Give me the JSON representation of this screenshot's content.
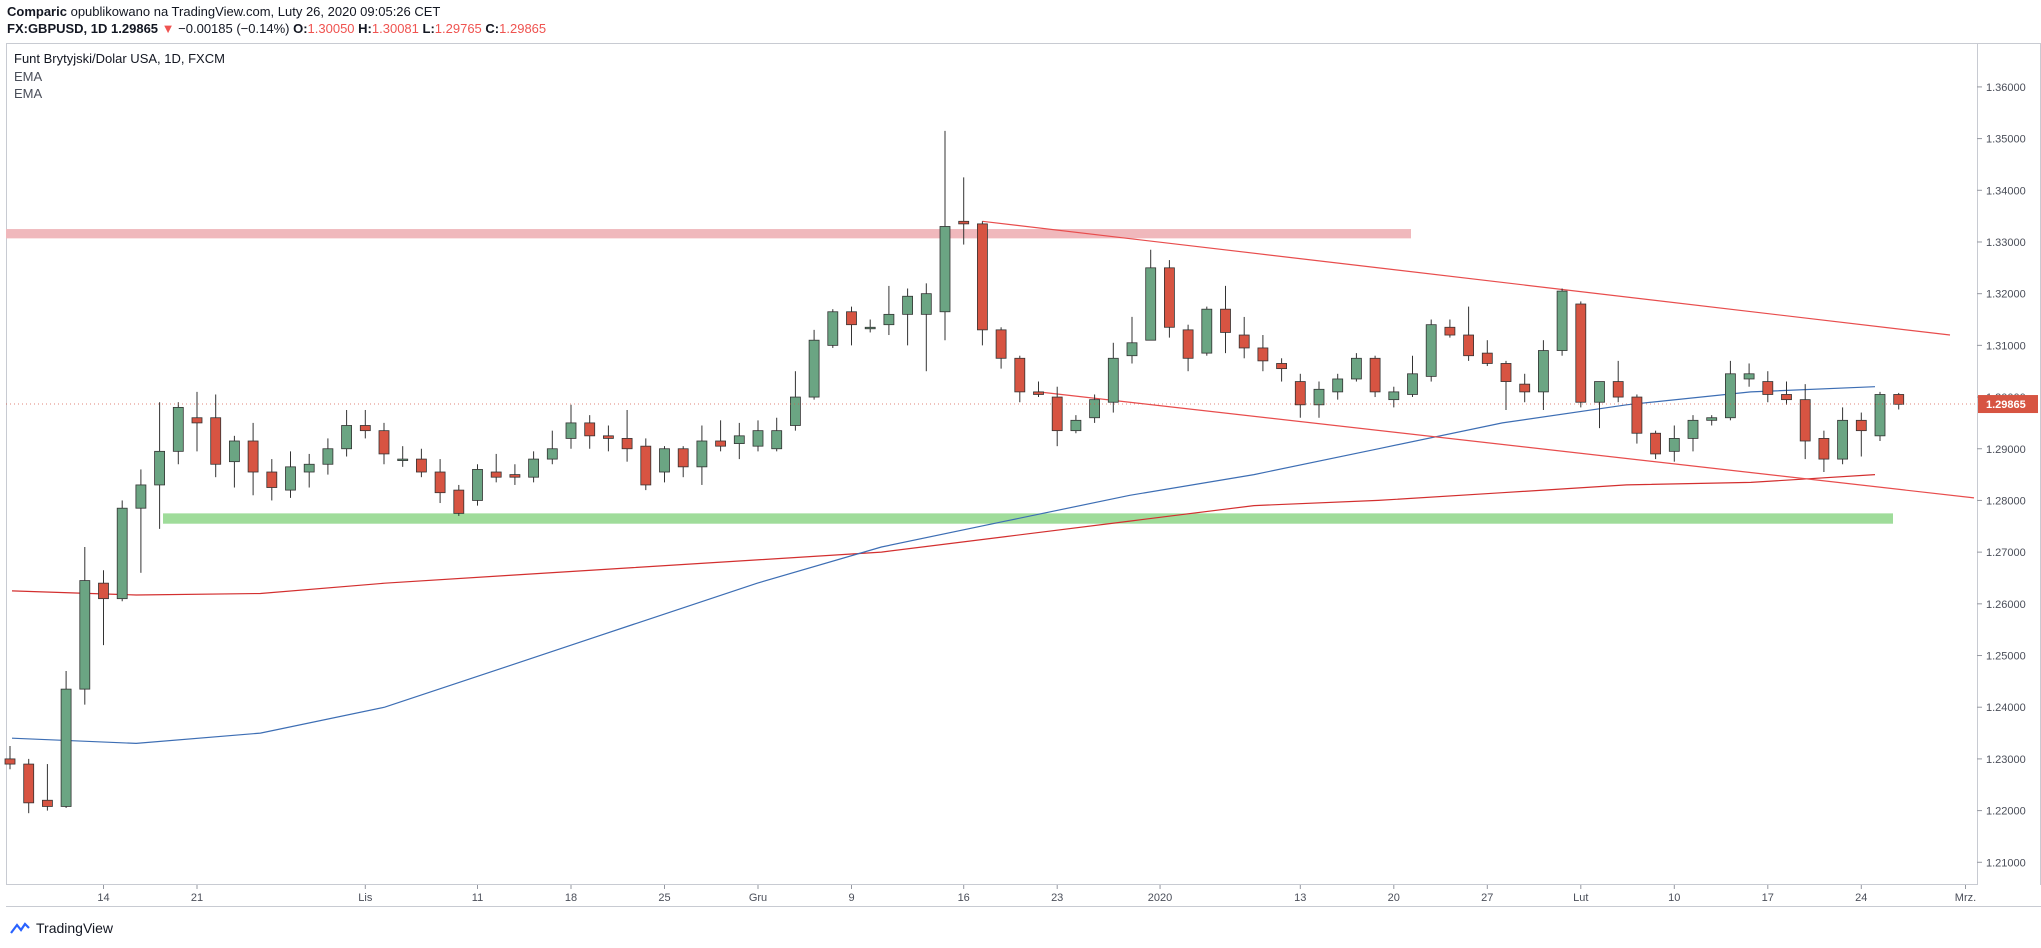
{
  "header": {
    "author": "Comparic",
    "published_text": "opublikowano na TradingView.com, Luty 26, 2020 09:05:26 CET",
    "symbol": "FX:GBPUSD, 1D",
    "last": "1.29865",
    "change_arrow": "▼",
    "change": "−0.00185 (−0.14%)",
    "o_label": "O:",
    "o_value": "1.30050",
    "h_label": "H:",
    "h_value": "1.30081",
    "l_label": "L:",
    "l_value": "1.29765",
    "c_label": "C:",
    "c_value": "1.29865"
  },
  "legend": {
    "title": "Funt Brytyjski/Dolar USA, 1D, FXCM",
    "ind1": "EMA",
    "ind2": "EMA"
  },
  "footer": {
    "brand": "TradingView"
  },
  "colors": {
    "up": "#6ba583",
    "down": "#d75442",
    "ema_fast": "#3d6eb4",
    "ema_slow": "#d32f2f",
    "channel": "#e84d4d",
    "resistance_zone": "#f0b8bc",
    "support_zone": "#9fdc9a",
    "price_label": "#d75442"
  },
  "chart_data": {
    "type": "candlestick",
    "title": "Funt Brytyjski/Dolar USA, 1D, FXCM",
    "ylim": [
      1.2058,
      1.3683
    ],
    "y_ticks": [
      "1.21000",
      "1.22000",
      "1.23000",
      "1.24000",
      "1.25000",
      "1.26000",
      "1.27000",
      "1.28000",
      "1.29000",
      "1.30000",
      "1.31000",
      "1.32000",
      "1.33000",
      "1.34000",
      "1.35000",
      "1.36000"
    ],
    "x_ticks": [
      {
        "label": "14",
        "date": "2019-10-14"
      },
      {
        "label": "21",
        "date": "2019-10-21"
      },
      {
        "label": "Lis",
        "date": "2019-11-01"
      },
      {
        "label": "11",
        "date": "2019-11-11"
      },
      {
        "label": "18",
        "date": "2019-11-18"
      },
      {
        "label": "25",
        "date": "2019-11-25"
      },
      {
        "label": "Gru",
        "date": "2019-12-02"
      },
      {
        "label": "9",
        "date": "2019-12-09"
      },
      {
        "label": "16",
        "date": "2019-12-16"
      },
      {
        "label": "23",
        "date": "2019-12-23"
      },
      {
        "label": "2020",
        "date": "2020-01-01"
      },
      {
        "label": "13",
        "date": "2020-01-13"
      },
      {
        "label": "20",
        "date": "2020-01-20"
      },
      {
        "label": "27",
        "date": "2020-01-27"
      },
      {
        "label": "Lut",
        "date": "2020-02-03"
      },
      {
        "label": "10",
        "date": "2020-02-10"
      },
      {
        "label": "17",
        "date": "2020-02-17"
      },
      {
        "label": "24",
        "date": "2020-02-24"
      },
      {
        "label": "Mrz.",
        "date": "2020-03-02"
      }
    ],
    "last_price_label": "1.29865",
    "candles": [
      {
        "date": "2019-10-07",
        "o": 1.23,
        "h": 1.2325,
        "l": 1.228,
        "c": 1.229
      },
      {
        "date": "2019-10-08",
        "o": 1.229,
        "h": 1.23,
        "l": 1.2195,
        "c": 1.2215
      },
      {
        "date": "2019-10-09",
        "o": 1.222,
        "h": 1.229,
        "l": 1.22,
        "c": 1.2208
      },
      {
        "date": "2019-10-10",
        "o": 1.2208,
        "h": 1.247,
        "l": 1.2205,
        "c": 1.2435
      },
      {
        "date": "2019-10-11",
        "o": 1.2435,
        "h": 1.271,
        "l": 1.2405,
        "c": 1.2645
      },
      {
        "date": "2019-10-14",
        "o": 1.264,
        "h": 1.2665,
        "l": 1.252,
        "c": 1.261
      },
      {
        "date": "2019-10-15",
        "o": 1.261,
        "h": 1.28,
        "l": 1.2605,
        "c": 1.2785
      },
      {
        "date": "2019-10-16",
        "o": 1.2785,
        "h": 1.286,
        "l": 1.266,
        "c": 1.283
      },
      {
        "date": "2019-10-17",
        "o": 1.283,
        "h": 1.299,
        "l": 1.2745,
        "c": 1.2895
      },
      {
        "date": "2019-10-18",
        "o": 1.2895,
        "h": 1.299,
        "l": 1.287,
        "c": 1.298
      },
      {
        "date": "2019-10-21",
        "o": 1.296,
        "h": 1.301,
        "l": 1.2895,
        "c": 1.295
      },
      {
        "date": "2019-10-22",
        "o": 1.296,
        "h": 1.3005,
        "l": 1.2845,
        "c": 1.287
      },
      {
        "date": "2019-10-23",
        "o": 1.2875,
        "h": 1.2925,
        "l": 1.2825,
        "c": 1.2915
      },
      {
        "date": "2019-10-24",
        "o": 1.2915,
        "h": 1.295,
        "l": 1.281,
        "c": 1.2855
      },
      {
        "date": "2019-10-25",
        "o": 1.2855,
        "h": 1.288,
        "l": 1.28,
        "c": 1.2825
      },
      {
        "date": "2019-10-28",
        "o": 1.282,
        "h": 1.2895,
        "l": 1.2805,
        "c": 1.2865
      },
      {
        "date": "2019-10-29",
        "o": 1.2855,
        "h": 1.289,
        "l": 1.2825,
        "c": 1.287
      },
      {
        "date": "2019-10-30",
        "o": 1.287,
        "h": 1.292,
        "l": 1.285,
        "c": 1.29
      },
      {
        "date": "2019-10-31",
        "o": 1.29,
        "h": 1.2975,
        "l": 1.2885,
        "c": 1.2945
      },
      {
        "date": "2019-11-01",
        "o": 1.2945,
        "h": 1.2975,
        "l": 1.292,
        "c": 1.2935
      },
      {
        "date": "2019-11-04",
        "o": 1.2935,
        "h": 1.295,
        "l": 1.287,
        "c": 1.289
      },
      {
        "date": "2019-11-05",
        "o": 1.288,
        "h": 1.2905,
        "l": 1.2865,
        "c": 1.288
      },
      {
        "date": "2019-11-06",
        "o": 1.288,
        "h": 1.29,
        "l": 1.2845,
        "c": 1.2855
      },
      {
        "date": "2019-11-07",
        "o": 1.2855,
        "h": 1.288,
        "l": 1.2795,
        "c": 1.2815
      },
      {
        "date": "2019-11-08",
        "o": 1.282,
        "h": 1.283,
        "l": 1.277,
        "c": 1.2775
      },
      {
        "date": "2019-11-11",
        "o": 1.28,
        "h": 1.287,
        "l": 1.279,
        "c": 1.286
      },
      {
        "date": "2019-11-12",
        "o": 1.2855,
        "h": 1.289,
        "l": 1.2835,
        "c": 1.2845
      },
      {
        "date": "2019-11-13",
        "o": 1.285,
        "h": 1.287,
        "l": 1.283,
        "c": 1.2845
      },
      {
        "date": "2019-11-14",
        "o": 1.2845,
        "h": 1.2895,
        "l": 1.2835,
        "c": 1.288
      },
      {
        "date": "2019-11-15",
        "o": 1.288,
        "h": 1.2935,
        "l": 1.287,
        "c": 1.29
      },
      {
        "date": "2019-11-18",
        "o": 1.292,
        "h": 1.2985,
        "l": 1.29,
        "c": 1.295
      },
      {
        "date": "2019-11-19",
        "o": 1.295,
        "h": 1.2965,
        "l": 1.29,
        "c": 1.2925
      },
      {
        "date": "2019-11-20",
        "o": 1.2925,
        "h": 1.2945,
        "l": 1.2895,
        "c": 1.292
      },
      {
        "date": "2019-11-21",
        "o": 1.292,
        "h": 1.2975,
        "l": 1.2875,
        "c": 1.29
      },
      {
        "date": "2019-11-22",
        "o": 1.2905,
        "h": 1.292,
        "l": 1.282,
        "c": 1.283
      },
      {
        "date": "2019-11-25",
        "o": 1.2855,
        "h": 1.2905,
        "l": 1.2835,
        "c": 1.29
      },
      {
        "date": "2019-11-26",
        "o": 1.29,
        "h": 1.2905,
        "l": 1.2845,
        "c": 1.2865
      },
      {
        "date": "2019-11-27",
        "o": 1.2865,
        "h": 1.2945,
        "l": 1.283,
        "c": 1.2915
      },
      {
        "date": "2019-11-28",
        "o": 1.2915,
        "h": 1.2955,
        "l": 1.2895,
        "c": 1.2905
      },
      {
        "date": "2019-11-29",
        "o": 1.291,
        "h": 1.295,
        "l": 1.288,
        "c": 1.2925
      },
      {
        "date": "2019-12-02",
        "o": 1.2905,
        "h": 1.2955,
        "l": 1.2895,
        "c": 1.2935
      },
      {
        "date": "2019-12-03",
        "o": 1.29,
        "h": 1.296,
        "l": 1.2895,
        "c": 1.2935
      },
      {
        "date": "2019-12-04",
        "o": 1.2945,
        "h": 1.305,
        "l": 1.2935,
        "c": 1.3
      },
      {
        "date": "2019-12-05",
        "o": 1.3,
        "h": 1.313,
        "l": 1.2995,
        "c": 1.311
      },
      {
        "date": "2019-12-06",
        "o": 1.31,
        "h": 1.317,
        "l": 1.3095,
        "c": 1.3165
      },
      {
        "date": "2019-12-09",
        "o": 1.3165,
        "h": 1.3175,
        "l": 1.31,
        "c": 1.314
      },
      {
        "date": "2019-12-10",
        "o": 1.3135,
        "h": 1.315,
        "l": 1.3125,
        "c": 1.3135
      },
      {
        "date": "2019-12-11",
        "o": 1.314,
        "h": 1.3215,
        "l": 1.312,
        "c": 1.316
      },
      {
        "date": "2019-12-12",
        "o": 1.316,
        "h": 1.321,
        "l": 1.31,
        "c": 1.3195
      },
      {
        "date": "2019-12-13",
        "o": 1.316,
        "h": 1.322,
        "l": 1.305,
        "c": 1.32
      },
      {
        "date": "2019-12-13b",
        "o": 1.3165,
        "h": 1.3515,
        "l": 1.311,
        "c": 1.333
      },
      {
        "date": "2019-12-16",
        "o": 1.334,
        "h": 1.3425,
        "l": 1.3295,
        "c": 1.3335
      },
      {
        "date": "2019-12-17",
        "o": 1.3335,
        "h": 1.334,
        "l": 1.31,
        "c": 1.313
      },
      {
        "date": "2019-12-18",
        "o": 1.313,
        "h": 1.3135,
        "l": 1.3055,
        "c": 1.3075
      },
      {
        "date": "2019-12-19",
        "o": 1.3075,
        "h": 1.308,
        "l": 1.299,
        "c": 1.301
      },
      {
        "date": "2019-12-20",
        "o": 1.301,
        "h": 1.303,
        "l": 1.3,
        "c": 1.3005
      },
      {
        "date": "2019-12-23",
        "o": 1.3,
        "h": 1.302,
        "l": 1.2905,
        "c": 1.2935
      },
      {
        "date": "2019-12-24",
        "o": 1.2935,
        "h": 1.2965,
        "l": 1.293,
        "c": 1.2955
      },
      {
        "date": "2019-12-26",
        "o": 1.296,
        "h": 1.3005,
        "l": 1.295,
        "c": 1.2995
      },
      {
        "date": "2019-12-27",
        "o": 1.299,
        "h": 1.3105,
        "l": 1.297,
        "c": 1.3075
      },
      {
        "date": "2019-12-30",
        "o": 1.308,
        "h": 1.3155,
        "l": 1.3065,
        "c": 1.3105
      },
      {
        "date": "2019-12-31",
        "o": 1.311,
        "h": 1.3285,
        "l": 1.311,
        "c": 1.325
      },
      {
        "date": "2020-01-02",
        "o": 1.325,
        "h": 1.3265,
        "l": 1.3115,
        "c": 1.3135
      },
      {
        "date": "2020-01-03",
        "o": 1.313,
        "h": 1.314,
        "l": 1.305,
        "c": 1.3075
      },
      {
        "date": "2020-01-06",
        "o": 1.3085,
        "h": 1.3175,
        "l": 1.308,
        "c": 1.317
      },
      {
        "date": "2020-01-07",
        "o": 1.317,
        "h": 1.3215,
        "l": 1.3085,
        "c": 1.3125
      },
      {
        "date": "2020-01-08",
        "o": 1.312,
        "h": 1.3155,
        "l": 1.3075,
        "c": 1.3095
      },
      {
        "date": "2020-01-09",
        "o": 1.3095,
        "h": 1.312,
        "l": 1.305,
        "c": 1.307
      },
      {
        "date": "2020-01-10",
        "o": 1.3065,
        "h": 1.3075,
        "l": 1.303,
        "c": 1.3055
      },
      {
        "date": "2020-01-13",
        "o": 1.303,
        "h": 1.3045,
        "l": 1.296,
        "c": 1.2985
      },
      {
        "date": "2020-01-14",
        "o": 1.2985,
        "h": 1.303,
        "l": 1.296,
        "c": 1.3015
      },
      {
        "date": "2020-01-15",
        "o": 1.301,
        "h": 1.3045,
        "l": 1.2995,
        "c": 1.3035
      },
      {
        "date": "2020-01-16",
        "o": 1.3035,
        "h": 1.3085,
        "l": 1.303,
        "c": 1.3075
      },
      {
        "date": "2020-01-17",
        "o": 1.3075,
        "h": 1.308,
        "l": 1.3,
        "c": 1.301
      },
      {
        "date": "2020-01-20",
        "o": 1.2995,
        "h": 1.302,
        "l": 1.298,
        "c": 1.301
      },
      {
        "date": "2020-01-21",
        "o": 1.3005,
        "h": 1.308,
        "l": 1.3,
        "c": 1.3045
      },
      {
        "date": "2020-01-22",
        "o": 1.304,
        "h": 1.315,
        "l": 1.303,
        "c": 1.314
      },
      {
        "date": "2020-01-23",
        "o": 1.3135,
        "h": 1.315,
        "l": 1.3115,
        "c": 1.312
      },
      {
        "date": "2020-01-24",
        "o": 1.312,
        "h": 1.3175,
        "l": 1.307,
        "c": 1.308
      },
      {
        "date": "2020-01-27",
        "o": 1.3085,
        "h": 1.311,
        "l": 1.306,
        "c": 1.3065
      },
      {
        "date": "2020-01-28",
        "o": 1.3065,
        "h": 1.307,
        "l": 1.2975,
        "c": 1.303
      },
      {
        "date": "2020-01-29",
        "o": 1.3025,
        "h": 1.3045,
        "l": 1.299,
        "c": 1.301
      },
      {
        "date": "2020-01-30",
        "o": 1.301,
        "h": 1.311,
        "l": 1.2975,
        "c": 1.309
      },
      {
        "date": "2020-01-31",
        "o": 1.309,
        "h": 1.321,
        "l": 1.308,
        "c": 1.3205
      },
      {
        "date": "2020-02-03",
        "o": 1.318,
        "h": 1.3185,
        "l": 1.298,
        "c": 1.299
      },
      {
        "date": "2020-02-04",
        "o": 1.299,
        "h": 1.303,
        "l": 1.294,
        "c": 1.303
      },
      {
        "date": "2020-02-05",
        "o": 1.303,
        "h": 1.307,
        "l": 1.299,
        "c": 1.3
      },
      {
        "date": "2020-02-06",
        "o": 1.3,
        "h": 1.3005,
        "l": 1.291,
        "c": 1.293
      },
      {
        "date": "2020-02-07",
        "o": 1.293,
        "h": 1.2935,
        "l": 1.288,
        "c": 1.289
      },
      {
        "date": "2020-02-10",
        "o": 1.2895,
        "h": 1.2945,
        "l": 1.2875,
        "c": 1.292
      },
      {
        "date": "2020-02-11",
        "o": 1.292,
        "h": 1.2965,
        "l": 1.2895,
        "c": 1.2955
      },
      {
        "date": "2020-02-12",
        "o": 1.2955,
        "h": 1.2965,
        "l": 1.2945,
        "c": 1.296
      },
      {
        "date": "2020-02-13",
        "o": 1.296,
        "h": 1.307,
        "l": 1.2955,
        "c": 1.3045
      },
      {
        "date": "2020-02-14",
        "o": 1.3035,
        "h": 1.3065,
        "l": 1.302,
        "c": 1.3045
      },
      {
        "date": "2020-02-17",
        "o": 1.303,
        "h": 1.305,
        "l": 1.299,
        "c": 1.3005
      },
      {
        "date": "2020-02-18",
        "o": 1.3005,
        "h": 1.303,
        "l": 1.2985,
        "c": 1.2995
      },
      {
        "date": "2020-02-19",
        "o": 1.2995,
        "h": 1.3025,
        "l": 1.288,
        "c": 1.2915
      },
      {
        "date": "2020-02-20",
        "o": 1.292,
        "h": 1.2935,
        "l": 1.2855,
        "c": 1.288
      },
      {
        "date": "2020-02-21",
        "o": 1.288,
        "h": 1.298,
        "l": 1.287,
        "c": 1.2955
      },
      {
        "date": "2020-02-24",
        "o": 1.2955,
        "h": 1.297,
        "l": 1.2885,
        "c": 1.2935
      },
      {
        "date": "2020-02-25",
        "o": 1.2925,
        "h": 1.301,
        "l": 1.2915,
        "c": 1.3005
      },
      {
        "date": "2020-02-26",
        "o": 1.3005,
        "h": 1.3008,
        "l": 1.2976,
        "c": 1.2986
      }
    ],
    "ema_fast": [
      1.234,
      1.233,
      1.235,
      1.24,
      1.248,
      1.256,
      1.264,
      1.271,
      1.276,
      1.281,
      1.285,
      1.29,
      1.295,
      1.2985,
      1.301,
      1.302
    ],
    "ema_slow": [
      1.2625,
      1.2617,
      1.262,
      1.264,
      1.2655,
      1.267,
      1.2685,
      1.27,
      1.273,
      1.276,
      1.279,
      1.28,
      1.2815,
      1.283,
      1.2835,
      1.285
    ],
    "resistance_zone": [
      1.3307,
      1.3325
    ],
    "support_zone": [
      1.2755,
      1.2775
    ],
    "channel_upper": [
      {
        "date": "2019-12-17",
        "value": 1.334
      },
      {
        "date": "2020-02-29",
        "value": 1.312
      }
    ],
    "channel_lower": [
      {
        "date": "2019-12-20",
        "value": 1.301
      },
      {
        "date": "2020-03-04",
        "value": 1.2805
      }
    ]
  }
}
